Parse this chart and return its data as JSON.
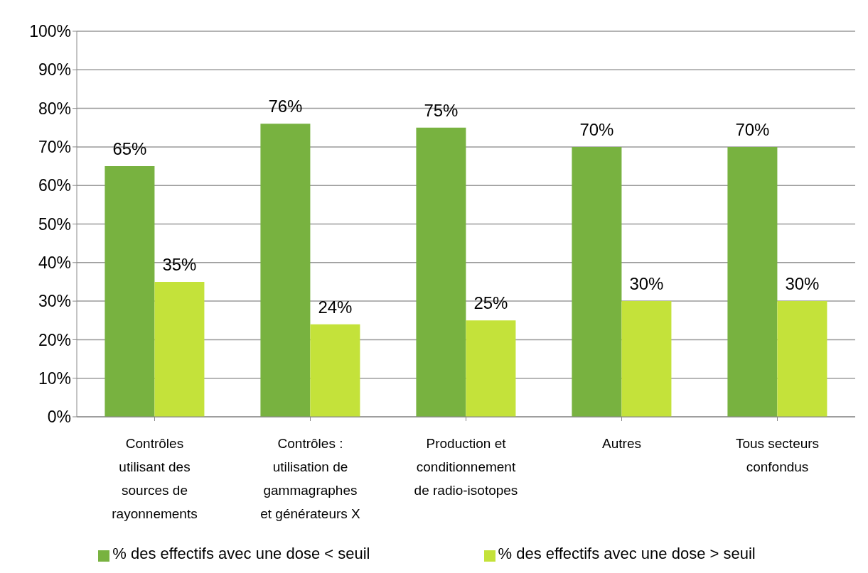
{
  "chart_data": {
    "type": "bar",
    "categories": [
      "Contrôles utilisant des sources de rayonnements",
      "Contrôles : utilisation de gammagraphes et générateurs X",
      "Production et conditionnement de radio-isotopes",
      "Autres",
      "Tous secteurs confondus"
    ],
    "series": [
      {
        "name": "% des effectifs avec une dose < seuil",
        "color": "#78b240",
        "values": [
          65,
          76,
          75,
          70,
          70
        ],
        "value_labels": [
          "65%",
          "76%",
          "75%",
          "70%",
          "70%"
        ]
      },
      {
        "name": "% des effectifs avec une dose > seuil",
        "color": "#c4e23a",
        "values": [
          35,
          24,
          25,
          30,
          30
        ],
        "value_labels": [
          "35%",
          "24%",
          "25%",
          "30%",
          "30%"
        ]
      }
    ],
    "ylim": [
      0,
      100
    ],
    "yticks": [
      {
        "value": 0,
        "label": "0%"
      },
      {
        "value": 10,
        "label": "10%"
      },
      {
        "value": 20,
        "label": "20%"
      },
      {
        "value": 30,
        "label": "30%"
      },
      {
        "value": 40,
        "label": "40%"
      },
      {
        "value": 50,
        "label": "50%"
      },
      {
        "value": 60,
        "label": "60%"
      },
      {
        "value": 70,
        "label": "70%"
      },
      {
        "value": 80,
        "label": "80%"
      },
      {
        "value": 90,
        "label": "90%"
      },
      {
        "value": 100,
        "label": "100%"
      }
    ],
    "grid": "y",
    "legend": "bottom"
  }
}
